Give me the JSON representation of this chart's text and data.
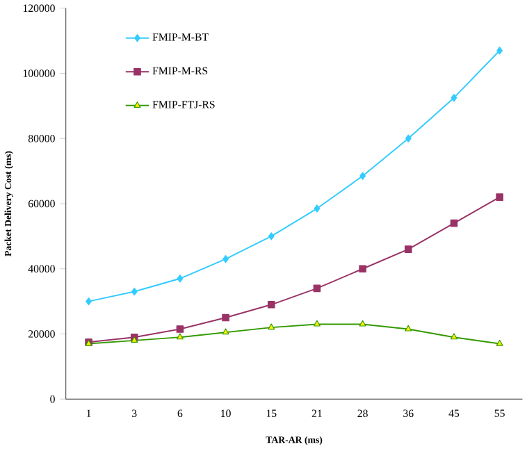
{
  "chart_data": {
    "type": "line",
    "xlabel": "TAR-AR (ms)",
    "ylabel": "Packet Delivery Cost (ms)",
    "categories": [
      "1",
      "3",
      "6",
      "10",
      "15",
      "21",
      "28",
      "36",
      "45",
      "55"
    ],
    "ylim": [
      0,
      120000
    ],
    "yticks": [
      0,
      20000,
      40000,
      60000,
      80000,
      100000,
      120000
    ],
    "legend": "top left",
    "grid": false,
    "series": [
      {
        "name": "FMIP-M-BT",
        "color": "#33ccff",
        "marker": "diamond",
        "values": [
          30000,
          33000,
          37000,
          43000,
          50000,
          58500,
          68500,
          80000,
          92500,
          107000
        ]
      },
      {
        "name": "FMIP-M-RS",
        "color": "#993366",
        "marker": "square",
        "values": [
          17500,
          19000,
          21500,
          25000,
          29000,
          34000,
          40000,
          46000,
          54000,
          62000
        ]
      },
      {
        "name": "FMIP-FTJ-RS",
        "color": "#339900",
        "marker": "triangle",
        "values": [
          17000,
          18000,
          19000,
          20500,
          22000,
          23000,
          23000,
          21500,
          19000,
          17000
        ]
      }
    ]
  }
}
